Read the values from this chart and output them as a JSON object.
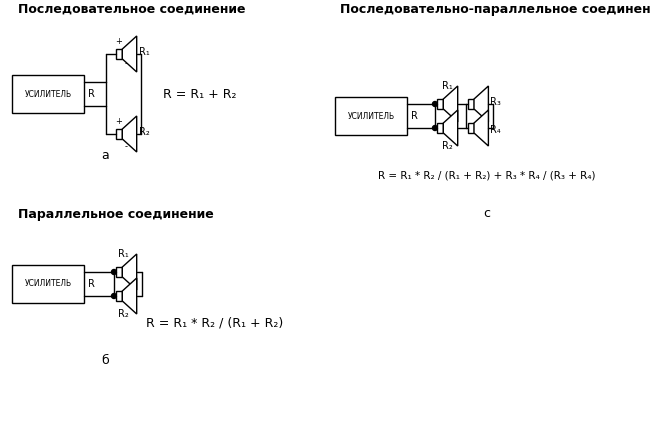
{
  "title_a": "Последовательное соединение",
  "title_b": "Параллельное соединение",
  "title_c": "Последовательно-параллельное соединение",
  "label_a": "a",
  "label_b": "б",
  "label_c": "c",
  "bg_color": "#ffffff",
  "line_color": "#000000",
  "text_color": "#000000",
  "font_size_title": 9,
  "font_size_label": 9,
  "font_size_formula": 9
}
